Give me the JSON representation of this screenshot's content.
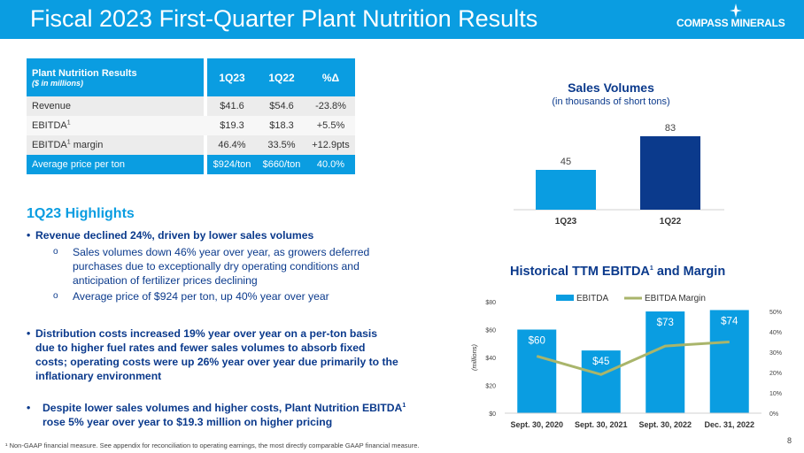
{
  "header": {
    "title": "Fiscal 2023 First-Quarter Plant Nutrition Results",
    "logo_text": "COMPASS MINERALS"
  },
  "table": {
    "title": "Plant Nutrition Results",
    "subtitle": "($ in millions)",
    "columns": [
      "1Q23",
      "1Q22",
      "%Δ"
    ],
    "rows": [
      {
        "label": "Revenue",
        "sup": "",
        "label_suffix": "",
        "values": [
          "$41.6",
          "$54.6",
          "-23.8%"
        ]
      },
      {
        "label": "EBITDA",
        "sup": "1",
        "label_suffix": "",
        "values": [
          "$19.3",
          "$18.3",
          "+5.5%"
        ]
      },
      {
        "label": "EBITDA",
        "sup": "1",
        "label_suffix": " margin",
        "values": [
          "46.4%",
          "33.5%",
          "+12.9pts"
        ]
      },
      {
        "label": "Average price per ton",
        "sup": "",
        "label_suffix": "",
        "values": [
          "$924/ton",
          "$660/ton",
          "40.0%"
        ]
      }
    ]
  },
  "highlights": {
    "title": "1Q23 Highlights",
    "b1": "Revenue declined 24%, driven by lower sales volumes",
    "b1_sub1": "Sales volumes down 46% year over year, as growers deferred purchases due to exceptionally dry operating conditions and anticipation of fertilizer prices declining",
    "b1_sub2": "Average price of $924 per ton, up 40% year over year",
    "b2": "Distribution costs increased 19% year over year on a per-ton basis due to higher fuel rates and fewer sales volumes to absorb fixed costs; operating costs were up 26% year over year due primarily to the inflationary environment",
    "b3_pre": "Despite lower sales volumes and higher costs, Plant Nutrition EBITDA",
    "b3_sup": "1",
    "b3_post": " rose 5% year over year to $19.3 million on higher pricing"
  },
  "chart_data": [
    {
      "type": "bar",
      "title": "Sales Volumes",
      "subtitle": "(in thousands of short tons)",
      "categories": [
        "1Q23",
        "1Q22"
      ],
      "values": [
        45,
        83
      ],
      "colors": [
        "#0a9de1",
        "#0b3a8c"
      ],
      "value_labels": [
        "45",
        "83"
      ],
      "ylim": [
        0,
        90
      ],
      "grid": false
    },
    {
      "type": "bar",
      "title": "Historical TTM EBITDA",
      "title_sup": "1",
      "title_suffix": " and Margin",
      "categories": [
        "Sept. 30, 2020",
        "Sept. 30, 2021",
        "Sept. 30, 2022",
        "Dec. 31, 2022"
      ],
      "series": [
        {
          "name": "EBITDA",
          "type": "bar",
          "axis": "left",
          "values": [
            60,
            45,
            73,
            74
          ],
          "labels": [
            "$60",
            "$45",
            "$73",
            "$74"
          ],
          "color": "#0a9de1"
        },
        {
          "name": "EBITDA Margin",
          "type": "line",
          "axis": "right",
          "values": [
            28,
            19,
            33,
            35
          ],
          "color": "#a9b56b"
        }
      ],
      "ylabel": "(millions)",
      "ylim": [
        0,
        80
      ],
      "yticks": [
        "$0",
        "$20",
        "$40",
        "$60",
        "$80"
      ],
      "y2lim": [
        0,
        50
      ],
      "y2ticks": [
        "0%",
        "10%",
        "20%",
        "30%",
        "40%",
        "50%"
      ],
      "legend": "top",
      "grid": false
    }
  ],
  "footnote": "¹ Non-GAAP financial measure. See appendix for reconciliation to operating earnings, the most directly comparable GAAP financial measure.",
  "page_number": "8"
}
